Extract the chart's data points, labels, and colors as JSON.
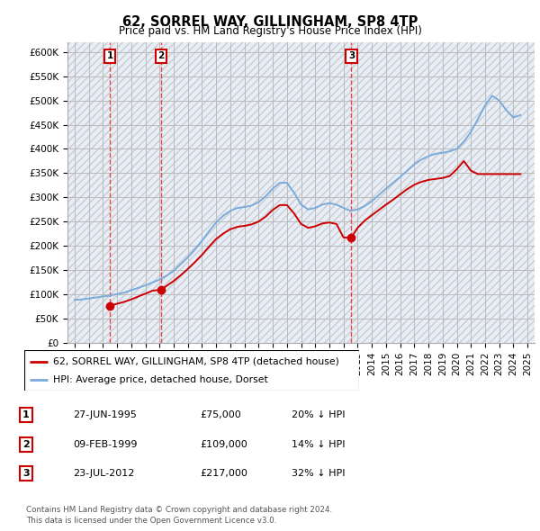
{
  "title": "62, SORREL WAY, GILLINGHAM, SP8 4TP",
  "subtitle": "Price paid vs. HM Land Registry's House Price Index (HPI)",
  "transactions": [
    {
      "label": "1",
      "date_num": 1995.49,
      "price": 75000
    },
    {
      "label": "2",
      "date_num": 1999.11,
      "price": 109000
    },
    {
      "label": "3",
      "date_num": 2012.56,
      "price": 217000
    }
  ],
  "hpi_years": [
    1993,
    1993.5,
    1994,
    1994.5,
    1995,
    1995.5,
    1996,
    1996.5,
    1997,
    1997.5,
    1998,
    1998.5,
    1999,
    1999.5,
    2000,
    2000.5,
    2001,
    2001.5,
    2002,
    2002.5,
    2003,
    2003.5,
    2004,
    2004.5,
    2005,
    2005.5,
    2006,
    2006.5,
    2007,
    2007.5,
    2008,
    2008.5,
    2009,
    2009.5,
    2010,
    2010.5,
    2011,
    2011.5,
    2012,
    2012.5,
    2013,
    2013.5,
    2014,
    2014.5,
    2015,
    2015.5,
    2016,
    2016.5,
    2017,
    2017.5,
    2018,
    2018.5,
    2019,
    2019.5,
    2020,
    2020.5,
    2021,
    2021.5,
    2022,
    2022.5,
    2023,
    2023.5,
    2024,
    2024.5
  ],
  "hpi_values": [
    88000,
    89000,
    91000,
    93000,
    95000,
    97000,
    100000,
    103000,
    108000,
    113000,
    118000,
    124000,
    130000,
    138000,
    148000,
    162000,
    176000,
    192000,
    210000,
    230000,
    248000,
    262000,
    272000,
    278000,
    280000,
    283000,
    290000,
    302000,
    318000,
    330000,
    330000,
    310000,
    285000,
    275000,
    278000,
    285000,
    288000,
    285000,
    278000,
    272000,
    275000,
    282000,
    292000,
    305000,
    318000,
    330000,
    342000,
    355000,
    368000,
    378000,
    385000,
    390000,
    392000,
    395000,
    400000,
    415000,
    435000,
    462000,
    490000,
    510000,
    500000,
    480000,
    465000,
    470000
  ],
  "property_years": [
    1995.49,
    1995.6,
    1996,
    1996.5,
    1997,
    1997.5,
    1998,
    1998.5,
    1999.11,
    1999.5,
    2000,
    2000.5,
    2001,
    2001.5,
    2002,
    2002.5,
    2003,
    2003.5,
    2004,
    2004.5,
    2005,
    2005.5,
    2006,
    2006.5,
    2007,
    2007.5,
    2008,
    2008.5,
    2009,
    2009.5,
    2010,
    2010.5,
    2011,
    2011.5,
    2012,
    2012.56,
    2013,
    2013.5,
    2014,
    2014.5,
    2015,
    2015.5,
    2016,
    2016.5,
    2017,
    2017.5,
    2018,
    2018.5,
    2019,
    2019.5,
    2020,
    2020.5,
    2021,
    2021.5,
    2022,
    2022.5,
    2023,
    2023.5,
    2024,
    2024.5
  ],
  "property_values": [
    75000,
    77000,
    80000,
    84000,
    89000,
    95000,
    101000,
    107000,
    109000,
    117000,
    127000,
    139000,
    152000,
    166000,
    181000,
    198000,
    214000,
    225000,
    234000,
    239000,
    241000,
    244000,
    250000,
    260000,
    274000,
    284000,
    284000,
    267000,
    245000,
    237000,
    240000,
    246000,
    248000,
    245000,
    217000,
    217000,
    237000,
    252000,
    263000,
    274000,
    285000,
    295000,
    306000,
    317000,
    326000,
    332000,
    336000,
    338000,
    340000,
    344000,
    358000,
    375000,
    355000,
    348000,
    348000,
    348000,
    348000,
    348000,
    348000,
    348000
  ],
  "ylabel_ticks": [
    0,
    50000,
    100000,
    150000,
    200000,
    250000,
    300000,
    350000,
    400000,
    450000,
    500000,
    550000,
    600000
  ],
  "ylabel_labels": [
    "£0",
    "£50K",
    "£100K",
    "£150K",
    "£200K",
    "£250K",
    "£300K",
    "£350K",
    "£400K",
    "£450K",
    "£500K",
    "£550K",
    "£600K"
  ],
  "xtick_years": [
    1993,
    1994,
    1995,
    1996,
    1997,
    1998,
    1999,
    2000,
    2001,
    2002,
    2003,
    2004,
    2005,
    2006,
    2007,
    2008,
    2009,
    2010,
    2011,
    2012,
    2013,
    2014,
    2015,
    2016,
    2017,
    2018,
    2019,
    2020,
    2021,
    2022,
    2023,
    2024,
    2025
  ],
  "xlim": [
    1992.5,
    2025.5
  ],
  "ylim": [
    0,
    620000
  ],
  "hpi_color": "#7aabdb",
  "property_color": "#cc0000",
  "vline_color": "#ee3333",
  "bg_color": "#e8eef8",
  "grid_color": "#bbbbbb",
  "legend_items": [
    "62, SORREL WAY, GILLINGHAM, SP8 4TP (detached house)",
    "HPI: Average price, detached house, Dorset"
  ],
  "table_rows": [
    [
      "1",
      "27-JUN-1995",
      "£75,000",
      "20% ↓ HPI"
    ],
    [
      "2",
      "09-FEB-1999",
      "£109,000",
      "14% ↓ HPI"
    ],
    [
      "3",
      "23-JUL-2012",
      "£217,000",
      "32% ↓ HPI"
    ]
  ],
  "footer": "Contains HM Land Registry data © Crown copyright and database right 2024.\nThis data is licensed under the Open Government Licence v3.0."
}
